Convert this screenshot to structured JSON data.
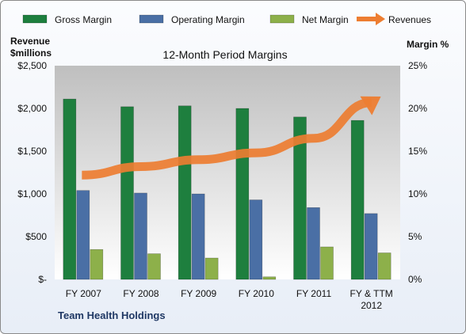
{
  "chart_data": {
    "type": "bar",
    "title": "12-Month Period Margins",
    "company": "Team Health Holdings",
    "y_left_label": [
      "Revenue",
      "$millions"
    ],
    "y_right_label": "Margin %",
    "categories": [
      {
        "line1": "FY 2007",
        "line2": ""
      },
      {
        "line1": "FY 2008",
        "line2": ""
      },
      {
        "line1": "FY 2009",
        "line2": ""
      },
      {
        "line1": "FY 2010",
        "line2": ""
      },
      {
        "line1": "FY 2011",
        "line2": ""
      },
      {
        "line1": "FY & TTM",
        "line2": "2012"
      }
    ],
    "y_left_ticks": [
      "$-",
      "$500",
      "$1,000",
      "$1,500",
      "$2,000",
      "$2,500"
    ],
    "y_right_ticks": [
      "0%",
      "5%",
      "10%",
      "15%",
      "20%",
      "25%"
    ],
    "y_left_range": [
      0,
      2500
    ],
    "y_right_range": [
      0,
      25
    ],
    "grid": false,
    "legend_position": "top",
    "series": [
      {
        "name": "Gross Margin",
        "type": "bar",
        "axis": "right",
        "color": "#1e7f3e",
        "values": [
          21.1,
          20.2,
          20.3,
          20.0,
          19.0,
          18.6
        ]
      },
      {
        "name": "Operating Margin",
        "type": "bar",
        "axis": "right",
        "color": "#4a6fa5",
        "values": [
          10.4,
          10.1,
          10.0,
          9.3,
          8.4,
          7.7
        ]
      },
      {
        "name": "Net Margin",
        "type": "bar",
        "axis": "right",
        "color": "#8db04a",
        "values": [
          3.5,
          3.0,
          2.5,
          0.3,
          3.8,
          3.1
        ]
      },
      {
        "name": "Revenues",
        "type": "arrow-line",
        "axis": "left",
        "color": "#ed7d31",
        "values": [
          1220,
          1320,
          1400,
          1480,
          1650,
          2070
        ]
      }
    ]
  }
}
